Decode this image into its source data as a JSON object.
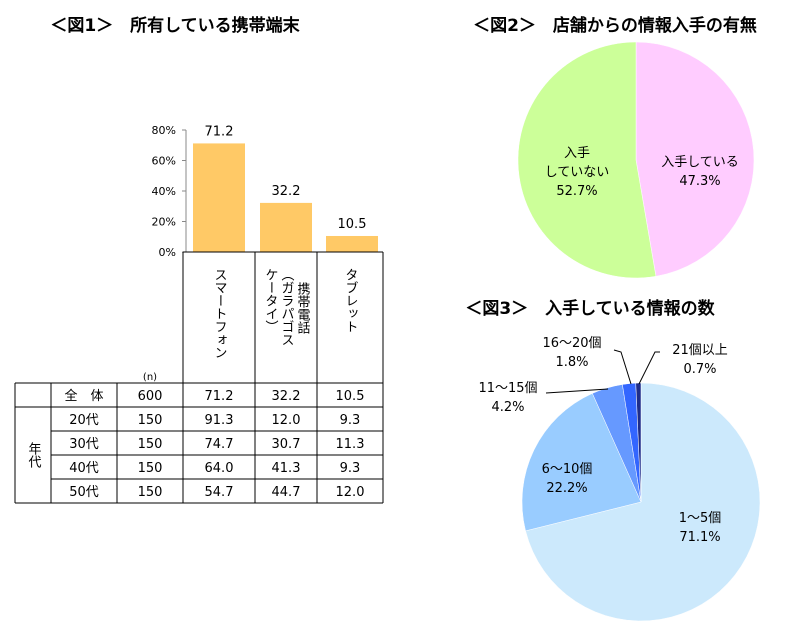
{
  "chart_data": [
    {
      "type": "bar",
      "title": "＜図1＞　所有している携帯端末",
      "categories": [
        "スマートフォン",
        "携帯電話（ガラパゴスケータイ）",
        "タブレット"
      ],
      "values": [
        71.2,
        32.2,
        10.5
      ],
      "ylim": [
        0,
        80
      ],
      "yticks": [
        "0%",
        "20%",
        "40%",
        "60%",
        "80%"
      ],
      "bar_color": "#ffc966",
      "table": {
        "n_label": "(n)",
        "rows": [
          {
            "group": "",
            "label": "全　体",
            "n": "600",
            "values": [
              "71.2",
              "32.2",
              "10.5"
            ]
          },
          {
            "group": "年代",
            "label": "20代",
            "n": "150",
            "values": [
              "91.3",
              "12.0",
              "9.3"
            ]
          },
          {
            "group": "年代",
            "label": "30代",
            "n": "150",
            "values": [
              "74.7",
              "30.7",
              "11.3"
            ]
          },
          {
            "group": "年代",
            "label": "40代",
            "n": "150",
            "values": [
              "64.0",
              "41.3",
              "9.3"
            ]
          },
          {
            "group": "年代",
            "label": "50代",
            "n": "150",
            "values": [
              "54.7",
              "44.7",
              "12.0"
            ]
          }
        ]
      }
    },
    {
      "type": "pie",
      "title": "＜図2＞　店舗からの情報入手の有無",
      "slices": [
        {
          "label": "入手している",
          "value": 47.3,
          "pct": "47.3%",
          "color": "#ffccff"
        },
        {
          "label": "入手していない",
          "value": 52.7,
          "pct": "52.7%",
          "color": "#ccff99"
        }
      ]
    },
    {
      "type": "pie",
      "title": "＜図3＞　入手している情報の数",
      "slices": [
        {
          "label": "1～5個",
          "value": 71.1,
          "pct": "71.1%",
          "color": "#cce9fc"
        },
        {
          "label": "6～10個",
          "value": 22.2,
          "pct": "22.2%",
          "color": "#99ccff"
        },
        {
          "label": "11～15個",
          "value": 4.2,
          "pct": "4.2%",
          "color": "#6699ff"
        },
        {
          "label": "16～20個",
          "value": 1.8,
          "pct": "1.8%",
          "color": "#3366ff"
        },
        {
          "label": "21個以上",
          "value": 0.7,
          "pct": "0.7%",
          "color": "#1f2d8a"
        }
      ]
    }
  ]
}
